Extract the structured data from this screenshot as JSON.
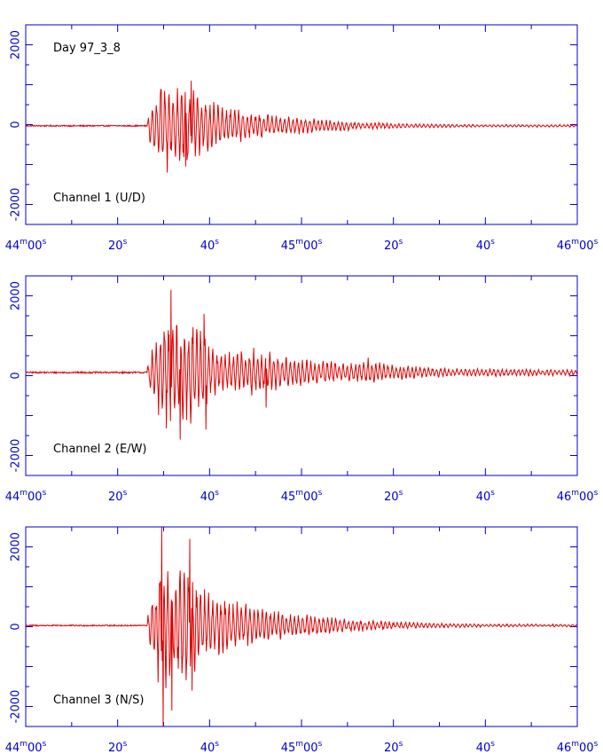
{
  "colors": {
    "axis": "#0000cc",
    "trace": "#e00000",
    "annotation": "#000000"
  },
  "chart_data": [
    {
      "type": "line",
      "channel": "Channel 1 (U/D)",
      "annotation_top": "Day 97_3_8",
      "x_unit": "seconds from 44m00s",
      "xlim": [
        0,
        120
      ],
      "ylim": [
        -2500,
        2500
      ],
      "y_ticks": [
        -2000,
        0,
        2000
      ],
      "x_tick_labels": [
        {
          "t": 0,
          "main": "44",
          "sup1": "m",
          "mid": "00",
          "sup2": "s"
        },
        {
          "t": 20,
          "main": "20",
          "sup1": "",
          "mid": "",
          "sup2": "s"
        },
        {
          "t": 40,
          "main": "40",
          "sup1": "",
          "mid": "",
          "sup2": "s"
        },
        {
          "t": 60,
          "main": "45",
          "sup1": "m",
          "mid": "00",
          "sup2": "s"
        },
        {
          "t": 80,
          "main": "20",
          "sup1": "",
          "mid": "",
          "sup2": "s"
        },
        {
          "t": 100,
          "main": "40",
          "sup1": "",
          "mid": "",
          "sup2": "s"
        },
        {
          "t": 120,
          "main": "46",
          "sup1": "m",
          "mid": "00",
          "sup2": "s"
        }
      ],
      "onset_s": 26.5,
      "baseline": -30,
      "envelope": [
        [
          26.5,
          150
        ],
        [
          27.5,
          750
        ],
        [
          29,
          1050
        ],
        [
          31,
          900
        ],
        [
          33,
          1000
        ],
        [
          35,
          1150
        ],
        [
          37,
          900
        ],
        [
          40,
          650
        ],
        [
          45,
          450
        ],
        [
          50,
          350
        ],
        [
          55,
          280
        ],
        [
          60,
          220
        ],
        [
          65,
          170
        ],
        [
          70,
          120
        ],
        [
          80,
          70
        ],
        [
          90,
          45
        ],
        [
          100,
          35
        ],
        [
          120,
          30
        ]
      ],
      "noise": 15,
      "peaks": [
        {
          "t": 29.5,
          "v": 850
        },
        {
          "t": 30.8,
          "v": -1200
        },
        {
          "t": 34.8,
          "v": -1050
        },
        {
          "t": 36.0,
          "v": 1100
        }
      ]
    },
    {
      "type": "line",
      "channel": "Channel 2 (E/W)",
      "x_unit": "seconds from 44m00s",
      "xlim": [
        0,
        120
      ],
      "ylim": [
        -2500,
        2500
      ],
      "y_ticks": [
        -2000,
        0,
        2000
      ],
      "x_tick_labels": [
        {
          "t": 0,
          "main": "44",
          "sup1": "m",
          "mid": "00",
          "sup2": "s"
        },
        {
          "t": 20,
          "main": "20",
          "sup1": "",
          "mid": "",
          "sup2": "s"
        },
        {
          "t": 40,
          "main": "40",
          "sup1": "",
          "mid": "",
          "sup2": "s"
        },
        {
          "t": 60,
          "main": "45",
          "sup1": "m",
          "mid": "00",
          "sup2": "s"
        },
        {
          "t": 80,
          "main": "20",
          "sup1": "",
          "mid": "",
          "sup2": "s"
        },
        {
          "t": 100,
          "main": "40",
          "sup1": "",
          "mid": "",
          "sup2": "s"
        },
        {
          "t": 120,
          "main": "46",
          "sup1": "m",
          "mid": "00",
          "sup2": "s"
        }
      ],
      "onset_s": 26.5,
      "baseline": 80,
      "envelope": [
        [
          26.5,
          200
        ],
        [
          28,
          800
        ],
        [
          30,
          1500
        ],
        [
          32,
          1400
        ],
        [
          34,
          1250
        ],
        [
          36,
          1500
        ],
        [
          38,
          1200
        ],
        [
          40,
          700
        ],
        [
          45,
          500
        ],
        [
          50,
          650
        ],
        [
          55,
          450
        ],
        [
          60,
          350
        ],
        [
          65,
          300
        ],
        [
          70,
          260
        ],
        [
          75,
          300
        ],
        [
          80,
          200
        ],
        [
          90,
          120
        ],
        [
          100,
          100
        ],
        [
          120,
          80
        ]
      ],
      "noise": 20,
      "peaks": [
        {
          "t": 31.6,
          "v": 2150
        },
        {
          "t": 33.6,
          "v": -1600
        },
        {
          "t": 38.8,
          "v": 1550
        },
        {
          "t": 39.2,
          "v": -1350
        },
        {
          "t": 52.3,
          "v": -800
        },
        {
          "t": 74.5,
          "v": 450
        }
      ]
    },
    {
      "type": "line",
      "channel": "Channel 3 (N/S)",
      "x_unit": "seconds from 44m00s",
      "xlim": [
        0,
        120
      ],
      "ylim": [
        -2500,
        2500
      ],
      "y_ticks": [
        -2000,
        0,
        2000
      ],
      "x_tick_labels": [
        {
          "t": 0,
          "main": "44",
          "sup1": "m",
          "mid": "00",
          "sup2": "s"
        },
        {
          "t": 20,
          "main": "20",
          "sup1": "",
          "mid": "",
          "sup2": "s"
        },
        {
          "t": 40,
          "main": "40",
          "sup1": "",
          "mid": "",
          "sup2": "s"
        },
        {
          "t": 60,
          "main": "45",
          "sup1": "m",
          "mid": "00",
          "sup2": "s"
        },
        {
          "t": 80,
          "main": "20",
          "sup1": "",
          "mid": "",
          "sup2": "s"
        },
        {
          "t": 100,
          "main": "40",
          "sup1": "",
          "mid": "",
          "sup2": "s"
        },
        {
          "t": 120,
          "main": "46",
          "sup1": "m",
          "mid": "00",
          "sup2": "s"
        }
      ],
      "onset_s": 26.5,
      "baseline": 30,
      "envelope": [
        [
          26.5,
          250
        ],
        [
          28,
          900
        ],
        [
          29.5,
          2000
        ],
        [
          31,
          1700
        ],
        [
          33,
          1500
        ],
        [
          35,
          1800
        ],
        [
          37,
          1200
        ],
        [
          40,
          900
        ],
        [
          45,
          650
        ],
        [
          50,
          500
        ],
        [
          55,
          400
        ],
        [
          60,
          320
        ],
        [
          65,
          250
        ],
        [
          70,
          180
        ],
        [
          80,
          100
        ],
        [
          90,
          60
        ],
        [
          100,
          40
        ],
        [
          120,
          30
        ]
      ],
      "noise": 15,
      "peaks": [
        {
          "t": 29.6,
          "v": 2500
        },
        {
          "t": 29.9,
          "v": -2500
        },
        {
          "t": 31.8,
          "v": -2100
        },
        {
          "t": 35.7,
          "v": 2200
        },
        {
          "t": 36.2,
          "v": -1600
        }
      ]
    }
  ]
}
